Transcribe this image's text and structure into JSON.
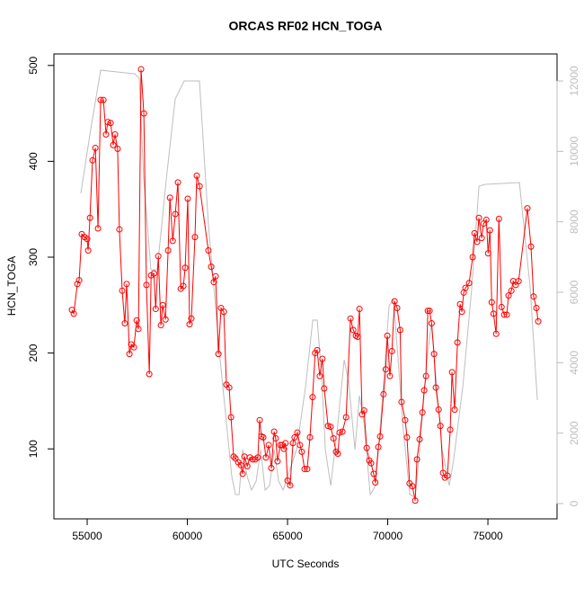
{
  "chart_data": {
    "type": "line",
    "title": "ORCAS RF02 HCN_TOGA",
    "xlabel": "UTC Seconds",
    "ylabel": "HCN_TOGA",
    "xlim": [
      53340,
      78450
    ],
    "ylim": [
      27,
      512
    ],
    "y2lim": [
      -434,
      12766
    ],
    "xticks": [
      55000,
      60000,
      65000,
      70000,
      75000
    ],
    "yticks": [
      100,
      200,
      300,
      400,
      500
    ],
    "y2ticks": [
      0,
      2000,
      4000,
      6000,
      8000,
      10000,
      12000
    ],
    "series": [
      {
        "color": "#ff0000",
        "markers": true,
        "x": [
          54240,
          54330,
          54510,
          54600,
          54730,
          54870,
          55000,
          55050,
          55140,
          55270,
          55410,
          55540,
          55670,
          55810,
          55940,
          56030,
          56170,
          56300,
          56390,
          56520,
          56610,
          56750,
          56880,
          56970,
          57110,
          57200,
          57330,
          57470,
          57560,
          57690,
          57830,
          57960,
          58100,
          58190,
          58330,
          58420,
          58550,
          58680,
          58770,
          58910,
          59040,
          59130,
          59270,
          59400,
          59530,
          59670,
          59800,
          59890,
          60020,
          60110,
          60200,
          60380,
          60470,
          60610,
          61050,
          61190,
          61320,
          61410,
          61550,
          61680,
          61820,
          61950,
          62090,
          62180,
          62310,
          62400,
          62540,
          62670,
          62760,
          62850,
          62990,
          63120,
          63260,
          63390,
          63520,
          63610,
          63700,
          63790,
          63920,
          64060,
          64190,
          64330,
          64410,
          64500,
          64640,
          64730,
          64820,
          64900,
          65000,
          65130,
          65270,
          65350,
          65490,
          65620,
          65710,
          65850,
          65980,
          66120,
          66250,
          66380,
          66480,
          66610,
          66740,
          66830,
          67020,
          67150,
          67290,
          67420,
          67510,
          67600,
          67740,
          67920,
          68140,
          68280,
          68410,
          68500,
          68590,
          68720,
          68820,
          68950,
          69080,
          69170,
          69300,
          69380,
          69530,
          69620,
          69790,
          69900,
          69980,
          70110,
          70210,
          70340,
          70470,
          70620,
          70690,
          70870,
          70960,
          71090,
          71230,
          71370,
          71460,
          71590,
          71730,
          71820,
          71910,
          72000,
          72090,
          72190,
          72310,
          72400,
          72540,
          72630,
          72760,
          72850,
          72980,
          73120,
          73210,
          73340,
          73480,
          73610,
          73700,
          73790,
          73880,
          74060,
          74240,
          74330,
          74460,
          74550,
          74690,
          74780,
          74920,
          75010,
          75100,
          75190,
          75280,
          75410,
          75550,
          75680,
          75810,
          75940,
          76030,
          76170,
          76260,
          76390,
          76530,
          76970,
          77150,
          77280,
          77420,
          77510
        ],
        "values": [
          245,
          241,
          272,
          276,
          324,
          321,
          319,
          307,
          341,
          401,
          414,
          330,
          464,
          464,
          428,
          441,
          440,
          417,
          428,
          413,
          329,
          265,
          231,
          272,
          199,
          209,
          206,
          234,
          225,
          496,
          450,
          271,
          178,
          281,
          283,
          246,
          301,
          229,
          250,
          235,
          307,
          362,
          317,
          345,
          378,
          267,
          270,
          289,
          361,
          230,
          236,
          321,
          385,
          374,
          307,
          290,
          274,
          280,
          199,
          247,
          243,
          167,
          164,
          133,
          92,
          90,
          86,
          83,
          74,
          92,
          82,
          91,
          89,
          89,
          91,
          130,
          113,
          112,
          91,
          104,
          80,
          118,
          111,
          87,
          104,
          104,
          100,
          106,
          67,
          62,
          106,
          112,
          117,
          104,
          97,
          79,
          79,
          112,
          154,
          200,
          203,
          176,
          194,
          163,
          124,
          123,
          111,
          97,
          95,
          117,
          118,
          133,
          236,
          224,
          218,
          217,
          246,
          136,
          140,
          101,
          88,
          85,
          74,
          65,
          102,
          113,
          157,
          183,
          218,
          176,
          202,
          254,
          247,
          224,
          149,
          130,
          112,
          64,
          61,
          46,
          89,
          110,
          138,
          161,
          176,
          244,
          244,
          231,
          199,
          164,
          141,
          124,
          75,
          70,
          72,
          120,
          180,
          141,
          211,
          251,
          243,
          263,
          268,
          273,
          300,
          325,
          316,
          341,
          320,
          335,
          339,
          304,
          328,
          253,
          241,
          220,
          340,
          248,
          240,
          240,
          260,
          265,
          275,
          271,
          275,
          351,
          311,
          259,
          247,
          233
        ]
      },
      {
        "color": "#bebebe",
        "axis": "y2",
        "x": [
          54686,
          55135,
          55673,
          57377,
          57601,
          57825,
          58184,
          58498,
          58946,
          59394,
          59843,
          60605,
          61054,
          61637,
          62220,
          62400,
          62580,
          62759,
          62983,
          63207,
          63432,
          63656,
          63880,
          64104,
          64329,
          64553,
          64777,
          65001,
          65449,
          65898,
          66257,
          66481,
          66705,
          66884,
          67153,
          67467,
          67826,
          68050,
          68364,
          68588,
          68812,
          69126,
          69395,
          69709,
          70068,
          70292,
          70516,
          70740,
          71099,
          71368,
          71592,
          71951,
          72175,
          72444,
          72713,
          73072,
          73296,
          73745,
          74193,
          74552,
          74866,
          76570,
          77108,
          77467
        ],
        "values": [
          8808,
          10467,
          12305,
          12203,
          12075,
          9190,
          6638,
          6638,
          9190,
          11488,
          12000,
          12000,
          7914,
          4090,
          766,
          255,
          255,
          1532,
          766,
          383,
          638,
          1532,
          383,
          511,
          1532,
          638,
          383,
          766,
          1532,
          3319,
          5208,
          5208,
          3574,
          1532,
          511,
          2043,
          4085,
          3447,
          1532,
          3064,
          2298,
          255,
          511,
          2809,
          5617,
          5795,
          4085,
          2298,
          255,
          179,
          1532,
          4085,
          5106,
          3319,
          1532,
          511,
          1277,
          3319,
          6127,
          9012,
          9063,
          9114,
          6127,
          2936
        ]
      }
    ]
  }
}
